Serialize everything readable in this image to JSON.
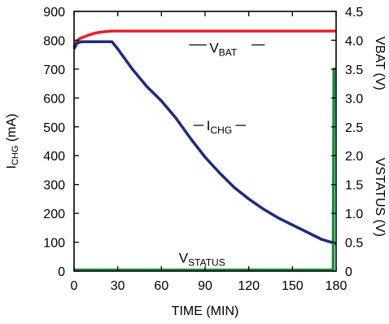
{
  "chart_data": {
    "type": "line",
    "title": "",
    "xlabel": "TIME (MIN)",
    "ylabel_left": {
      "main": "I",
      "sub": "CHG",
      "rest": " (mA)"
    },
    "ylabel_right_top": "VBAT (V)",
    "ylabel_right_bottom": "VSTATUS (V)",
    "xlim": [
      0,
      180
    ],
    "ylim_left": [
      0,
      900
    ],
    "ylim_right": [
      0,
      4.5
    ],
    "x_ticks": [
      0,
      30,
      60,
      90,
      120,
      150,
      180
    ],
    "y_left_ticks": [
      0,
      100,
      200,
      300,
      400,
      500,
      600,
      700,
      800,
      900
    ],
    "y_right_ticks": [
      0,
      0.5,
      1.0,
      1.5,
      2.0,
      2.5,
      3.0,
      3.5,
      4.0,
      4.5
    ],
    "y_right_tick_labels": [
      "0",
      "0.5",
      "1.0",
      "1.5",
      "2.0",
      "2.5",
      "3.0",
      "3.5",
      "4.0",
      "4.5"
    ],
    "grid": false,
    "series": [
      {
        "name": "VBAT",
        "axis": "right",
        "color": "#e8202a",
        "label_main": "V",
        "label_sub": "BAT",
        "x": [
          0,
          1,
          2,
          4,
          6,
          8,
          10,
          14,
          18,
          22,
          26,
          30,
          60,
          90,
          120,
          150,
          180
        ],
        "y": [
          3.88,
          3.95,
          3.99,
          4.03,
          4.05,
          4.07,
          4.09,
          4.12,
          4.14,
          4.15,
          4.16,
          4.16,
          4.16,
          4.16,
          4.16,
          4.16,
          4.16
        ]
      },
      {
        "name": "ICHG",
        "axis": "left",
        "color": "#1f2a80",
        "label_main": "I",
        "label_sub": "CHG",
        "x": [
          0,
          2,
          5,
          26,
          30,
          40,
          50,
          60,
          70,
          80,
          90,
          100,
          110,
          120,
          130,
          140,
          150,
          160,
          170,
          180
        ],
        "y": [
          770,
          790,
          795,
          795,
          770,
          700,
          640,
          590,
          530,
          460,
          395,
          340,
          290,
          250,
          215,
          185,
          160,
          135,
          110,
          95
        ]
      },
      {
        "name": "VSTATUS",
        "axis": "right",
        "color": "#1a8a3a",
        "label_main": "V",
        "label_sub": "STATUS",
        "x": [
          0,
          60,
          120,
          178,
          178.5,
          179,
          180
        ],
        "y": [
          0.02,
          0.02,
          0.02,
          0.02,
          3.5,
          3.5,
          3.5
        ]
      }
    ]
  }
}
